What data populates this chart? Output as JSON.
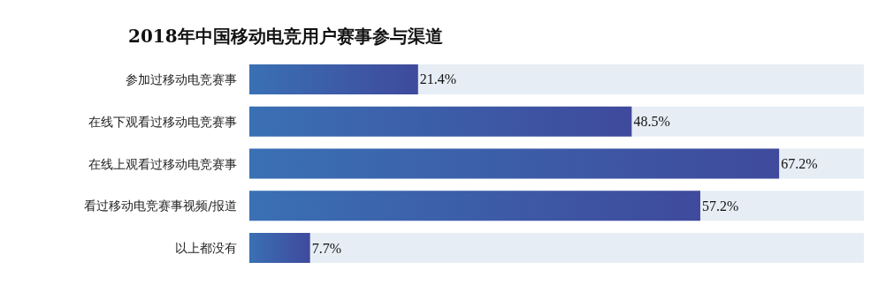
{
  "chart_data": {
    "type": "bar",
    "orientation": "horizontal",
    "title": "2018年中国移动电竞用户赛事参与渠道",
    "categories": [
      "参加过移动电竞赛事",
      "在线下观看过移动电竞赛事",
      "在线上观看过移动电竞赛事",
      "看过移动电竞赛事视频/报道",
      "以上都没有"
    ],
    "values": [
      21.4,
      48.5,
      67.2,
      57.2,
      7.7
    ],
    "value_labels": [
      "21.4%",
      "48.5%",
      "67.2%",
      "57.2%",
      "7.7%"
    ],
    "color": "#3f4a9c"
  }
}
